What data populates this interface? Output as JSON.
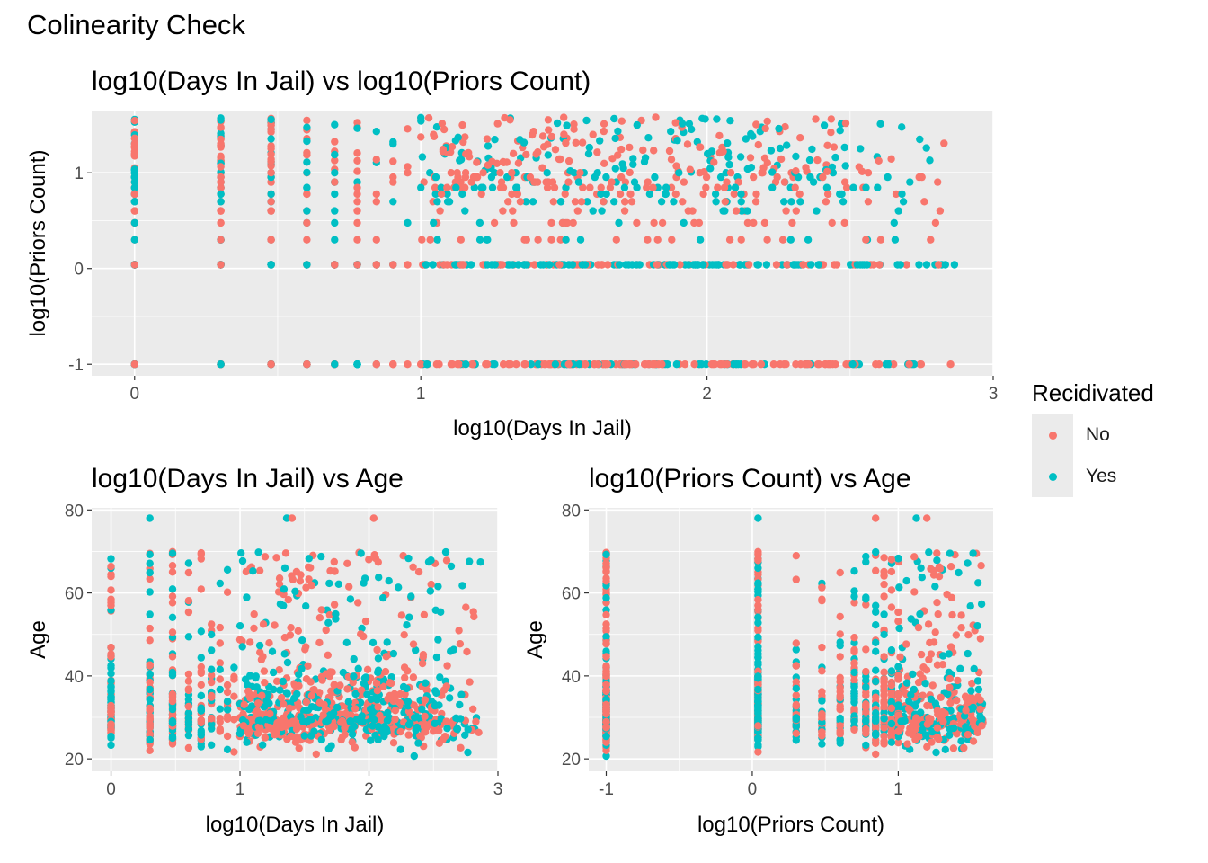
{
  "page_title": "Colinearity Check",
  "legend": {
    "title": "Recidivated",
    "items": [
      {
        "label": "No",
        "color": "#F8766D"
      },
      {
        "label": "Yes",
        "color": "#00BFC4"
      }
    ]
  },
  "chart_data": [
    {
      "id": "p1",
      "type": "scatter",
      "title": "log10(Days In Jail) vs log10(Priors Count)",
      "xlabel": "log10(Days In Jail)",
      "ylabel": "log10(Priors Count)",
      "xlim": [
        -0.15,
        3.0
      ],
      "ylim": [
        -1.12,
        1.65
      ],
      "xticks": [
        0,
        1,
        2,
        3
      ],
      "yticks": [
        -1,
        0,
        1
      ],
      "grid": true,
      "series": [
        {
          "name": "No",
          "color": "#F8766D",
          "approx_count": 700
        },
        {
          "name": "Yes",
          "color": "#00BFC4",
          "approx_count": 550
        }
      ],
      "notes": "Vertical stripes at x=0, 0.30, 0.48, 0.60, 0.70 (small integer days); horizontal bands at y=-1 (0 priors) and y≈0.04 (1 prior)."
    },
    {
      "id": "p2",
      "type": "scatter",
      "title": "log10(Days In Jail) vs Age",
      "xlabel": "log10(Days In Jail)",
      "ylabel": "Age",
      "xlim": [
        -0.15,
        3.0
      ],
      "ylim": [
        17,
        80.5
      ],
      "xticks": [
        0,
        1,
        2,
        3
      ],
      "yticks": [
        20,
        40,
        60,
        80
      ],
      "grid": true,
      "series": [
        {
          "name": "No",
          "color": "#F8766D",
          "approx_count": 700
        },
        {
          "name": "Yes",
          "color": "#00BFC4",
          "approx_count": 550
        }
      ]
    },
    {
      "id": "p3",
      "type": "scatter",
      "title": "log10(Priors Count) vs Age",
      "xlabel": "log10(Priors Count)",
      "ylabel": "Age",
      "xlim": [
        -1.12,
        1.65
      ],
      "ylim": [
        17,
        80.5
      ],
      "xticks": [
        -1,
        0,
        1
      ],
      "yticks": [
        20,
        40,
        60,
        80
      ],
      "grid": true,
      "series": [
        {
          "name": "No",
          "color": "#F8766D",
          "approx_count": 700
        },
        {
          "name": "Yes",
          "color": "#00BFC4",
          "approx_count": 550
        }
      ]
    }
  ]
}
